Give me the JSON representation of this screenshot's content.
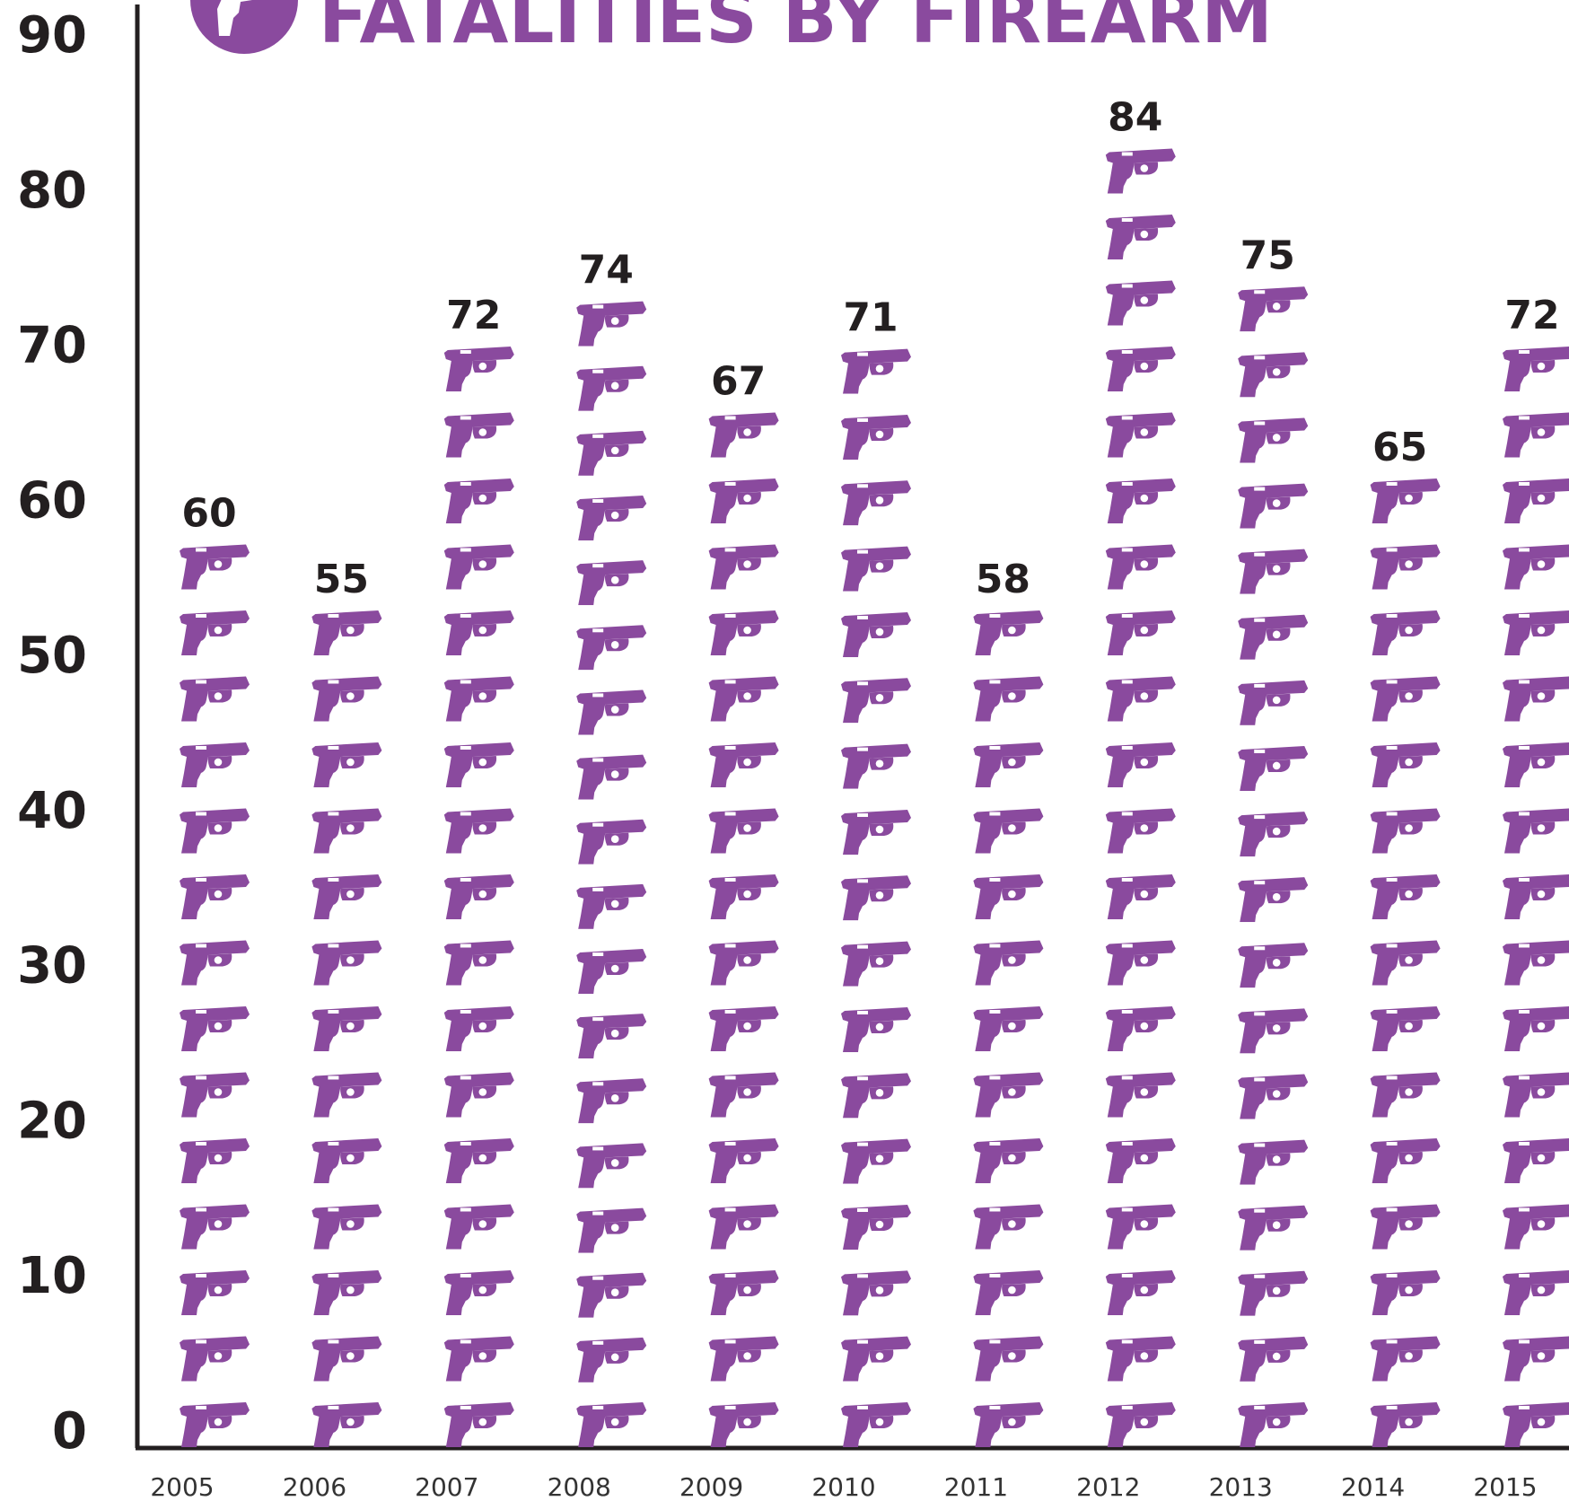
{
  "colors": {
    "accent": "#8a4a9e",
    "axis": "#231f20",
    "text": "#231f20"
  },
  "icons": {
    "header": "pistol-badge-icon",
    "unit": "pistol-icon"
  },
  "chart_data": {
    "type": "bar",
    "title": "FATALITIES BY FIREARM",
    "xlabel": "",
    "ylabel": "",
    "ylim": [
      0,
      90
    ],
    "yticks": [
      0,
      10,
      20,
      30,
      40,
      50,
      60,
      70,
      80,
      90
    ],
    "categories": [
      "2005",
      "2006",
      "2007",
      "2008",
      "2009",
      "2010",
      "2011",
      "2012",
      "2013",
      "2014",
      "2015"
    ],
    "values": [
      60,
      55,
      72,
      74,
      67,
      71,
      58,
      84,
      75,
      65,
      72
    ],
    "icons_shown": [
      14,
      13,
      17,
      18,
      16,
      17,
      13,
      20,
      18,
      15,
      17
    ],
    "grid": false,
    "legend": "none"
  }
}
